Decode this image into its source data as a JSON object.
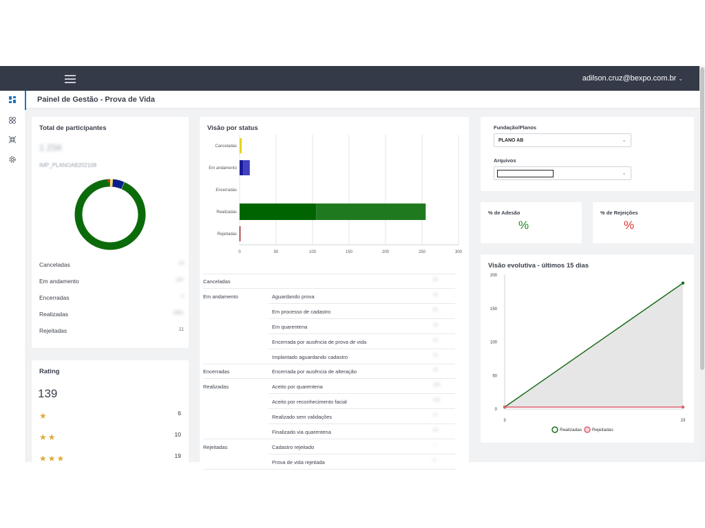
{
  "header": {
    "menu_icon": "hamburger-icon",
    "user_email": "adilson.cruz@bexpo.com.br",
    "user_caret": "⌄"
  },
  "page_title": "Painel de Gestão - Prova de Vida",
  "nav": [
    {
      "icon": "dashboard-icon",
      "active": true
    },
    {
      "icon": "people-icon",
      "active": false
    },
    {
      "icon": "compress-icon",
      "active": false
    },
    {
      "icon": "gear-icon",
      "active": false
    }
  ],
  "total_participantes": {
    "title": "Total de participantes",
    "total_value": "1 234",
    "plan_code": "IMP_PLANOAB202108",
    "items": [
      {
        "label": "Canceladas",
        "value": "13",
        "color": "#f5e06b"
      },
      {
        "label": "Em andamento",
        "value": "197",
        "color": "#0a1e8c"
      },
      {
        "label": "Encerradas",
        "value": "2",
        "color": "#c9c9c9"
      },
      {
        "label": "Realizadas",
        "value": "2881",
        "color": "#0b6b0b"
      },
      {
        "label": "Rejeitadas",
        "value": "11",
        "color": "#c0392b"
      }
    ],
    "donut_values": [
      3.5,
      14,
      0.5,
      250,
      1.5
    ]
  },
  "rating": {
    "title": "Rating",
    "total": "139",
    "rows": [
      {
        "stars": "★",
        "count": "6"
      },
      {
        "stars": "★★",
        "count": "10"
      },
      {
        "stars": "★★★",
        "count": "19"
      }
    ]
  },
  "visao_status": {
    "title": "Visão por status",
    "chart_data": {
      "type": "bar",
      "orientation": "horizontal",
      "categories": [
        "Canceladas",
        "Em andamento",
        "Encerradas",
        "Realizadas",
        "Rejeitadas"
      ],
      "series": [
        {
          "name": "segment-1",
          "values": [
            3,
            5,
            0,
            105,
            1
          ],
          "colors": [
            "#e8d41e",
            "#1a1a9c",
            "#999999",
            "#006400",
            "#8b0000"
          ]
        },
        {
          "name": "segment-2",
          "values": [
            0,
            9,
            0,
            150,
            0
          ],
          "colors": [
            "#e8d41e",
            "#4040c0",
            "#999999",
            "#1f7a1f",
            "#8b0000"
          ]
        }
      ],
      "xlim": [
        0,
        300
      ],
      "xticks": [
        "0",
        "50",
        "100",
        "150",
        "200",
        "250",
        "300"
      ],
      "grid": true
    },
    "table": [
      {
        "group": "Canceladas",
        "detail": "",
        "value": "35"
      },
      {
        "group": "Em andamento",
        "detail": "Aguardando prova",
        "value": "13"
      },
      {
        "group": "",
        "detail": "Em processo de cadastro",
        "value": "42"
      },
      {
        "group": "",
        "detail": "Em quarentena",
        "value": "16"
      },
      {
        "group": "",
        "detail": "Encerrada por ausência de prova de vida",
        "value": "21"
      },
      {
        "group": "",
        "detail": "Implantado aguardando cadastro",
        "value": "15"
      },
      {
        "group": "Encerradas",
        "detail": "Encerrada por ausência de alteração",
        "value": "19"
      },
      {
        "group": "Realizadas",
        "detail": "Aceito por quarentena",
        "value": "148"
      },
      {
        "group": "",
        "detail": "Aceito por reconhecimento facial",
        "value": "125"
      },
      {
        "group": "",
        "detail": "Realizado sem validações",
        "value": "37"
      },
      {
        "group": "",
        "detail": "Finalizado via quarentena",
        "value": "30"
      },
      {
        "group": "Rejeitadas",
        "detail": "Cadastro rejeitado",
        "value": "7"
      },
      {
        "group": "",
        "detail": "Prova de vida rejeitada",
        "value": "4"
      }
    ]
  },
  "filters": {
    "fundacao_label": "Fundação/Planos",
    "fundacao_value": "PLANO AB",
    "arquivos_label": "Arquivos",
    "arquivos_value": "",
    "caret": "⌄"
  },
  "kpis": {
    "adesao_label": "% de Adesão",
    "adesao_value": "%",
    "adesao_color": "#1e8a1e",
    "rejeicoes_label": "% de Rejeições",
    "rejeicoes_value": "%",
    "rejeicoes_color": "#e03030"
  },
  "visao_evolutiva": {
    "title": "Visão evolutiva - últimos 15 dias",
    "chart_data": {
      "type": "line",
      "x": [
        3,
        23
      ],
      "xticks": [
        "3",
        "23"
      ],
      "series": [
        {
          "name": "Realizadas",
          "values": [
            3,
            188
          ],
          "color": "#1a6b1a"
        },
        {
          "name": "Rejeitadas",
          "values": [
            3,
            3
          ],
          "color": "#e06070"
        }
      ],
      "ylim": [
        0,
        200
      ],
      "yticks": [
        "0",
        "50",
        "100",
        "150",
        "200"
      ],
      "legend": [
        "Realizadas",
        "Rejeitadas"
      ]
    }
  }
}
